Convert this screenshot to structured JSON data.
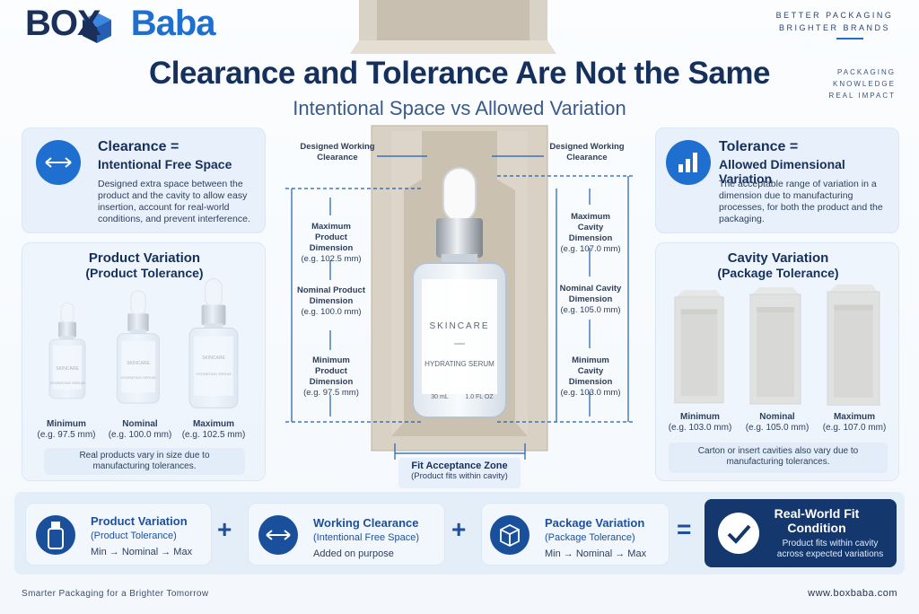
{
  "header": {
    "logo": {
      "part1": "BOX",
      "part2": "Baba"
    },
    "tagline": [
      "BETTER PACKAGING",
      "BRIGHTER BRANDS"
    ],
    "side_tagline": [
      "PACKAGING",
      "KNOWLEDGE",
      "REAL IMPACT"
    ],
    "title": "Clearance and Tolerance Are Not the Same",
    "subtitle": "Intentional Space vs Allowed Variation"
  },
  "clearance": {
    "title": "Clearance =",
    "subtitle": "Intentional Free Space",
    "text": "Designed extra space between the product and the cavity to allow easy insertion, account for real-world conditions, and prevent interference."
  },
  "tolerance": {
    "title": "Tolerance =",
    "subtitle": "Allowed Dimensional Variation",
    "text": "The acceptable range of variation in a dimension due to manufacturing processes, for both the product and the packaging."
  },
  "product_variation": {
    "title": "Product Variation",
    "subtitle": "(Product Tolerance)",
    "items": [
      {
        "label": "Minimum",
        "value": "(e.g. 97.5 mm)"
      },
      {
        "label": "Nominal",
        "value": "(e.g. 100.0 mm)"
      },
      {
        "label": "Maximum",
        "value": "(e.g. 102.5 mm)"
      }
    ],
    "note": "Real products vary in size due to manufacturing tolerances."
  },
  "cavity_variation": {
    "title": "Cavity Variation",
    "subtitle": "(Package Tolerance)",
    "items": [
      {
        "label": "Minimum",
        "value": "(e.g. 103.0 mm)"
      },
      {
        "label": "Nominal",
        "value": "(e.g. 105.0 mm)"
      },
      {
        "label": "Maximum",
        "value": "(e.g. 107.0 mm)"
      }
    ],
    "note": "Carton or insert cavities also vary due to manufacturing tolerances."
  },
  "bottle_label": {
    "brand": "SKINCARE",
    "product": "HYDRATING SERUM",
    "volume": "30 mL",
    "volume_oz": "1.0 FL OZ"
  },
  "diagram": {
    "clearance_left": "Designed Working Clearance",
    "clearance_right": "Designed Working Clearance",
    "product_dims": [
      {
        "title": "Maximum Product Dimension",
        "value": "(e.g. 102.5 mm)"
      },
      {
        "title": "Nominal Product Dimension",
        "value": "(e.g. 100.0 mm)"
      },
      {
        "title": "Minimum Product Dimension",
        "value": "(e.g. 97.5 mm)"
      }
    ],
    "cavity_dims": [
      {
        "title": "Maximum Cavity Dimension",
        "value": "(e.g. 107.0 mm)"
      },
      {
        "title": "Nominal Cavity Dimension",
        "value": "(e.g. 105.0 mm)"
      },
      {
        "title": "Minimum Cavity Dimension",
        "value": "(e.g. 103.0 mm)"
      }
    ],
    "fit_zone": {
      "title": "Fit Acceptance Zone",
      "subtitle": "(Product fits within cavity)"
    }
  },
  "equation": [
    {
      "title": "Product Variation",
      "subtitle": "(Product Tolerance)",
      "text": "Min → Nominal → Max"
    },
    {
      "title": "Working Clearance",
      "subtitle": "(Intentional Free Space)",
      "text": "Added on purpose"
    },
    {
      "title": "Package Variation",
      "subtitle": "(Package Tolerance)",
      "text": "Min → Nominal → Max"
    }
  ],
  "operators": [
    "+",
    "+",
    "="
  ],
  "result": {
    "title": "Real-World Fit Condition",
    "text": "Product fits within cavity across expected variations"
  },
  "footer": {
    "left": "Smarter Packaging for a Brighter Tomorrow",
    "right": "www.boxbaba.com"
  }
}
